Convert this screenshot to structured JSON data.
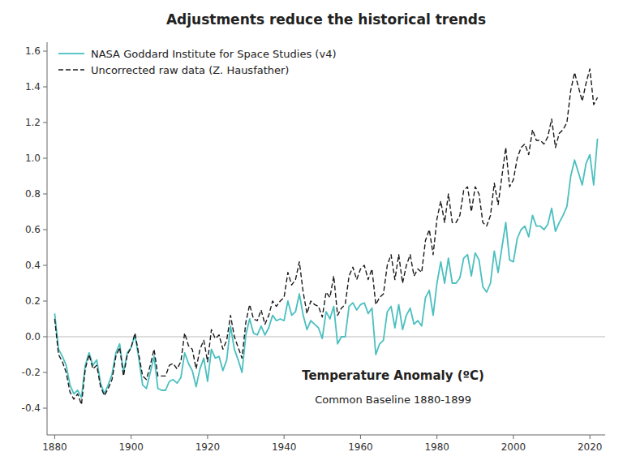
{
  "chart_data": {
    "type": "line",
    "title": "Adjustments reduce the historical trends",
    "x": [
      1880,
      1881,
      1882,
      1883,
      1884,
      1885,
      1886,
      1887,
      1888,
      1889,
      1890,
      1891,
      1892,
      1893,
      1894,
      1895,
      1896,
      1897,
      1898,
      1899,
      1900,
      1901,
      1902,
      1903,
      1904,
      1905,
      1906,
      1907,
      1908,
      1909,
      1910,
      1911,
      1912,
      1913,
      1914,
      1915,
      1916,
      1917,
      1918,
      1919,
      1920,
      1921,
      1922,
      1923,
      1924,
      1925,
      1926,
      1927,
      1928,
      1929,
      1930,
      1931,
      1932,
      1933,
      1934,
      1935,
      1936,
      1937,
      1938,
      1939,
      1940,
      1941,
      1942,
      1943,
      1944,
      1945,
      1946,
      1947,
      1948,
      1949,
      1950,
      1951,
      1952,
      1953,
      1954,
      1955,
      1956,
      1957,
      1958,
      1959,
      1960,
      1961,
      1962,
      1963,
      1964,
      1965,
      1966,
      1967,
      1968,
      1969,
      1970,
      1971,
      1972,
      1973,
      1974,
      1975,
      1976,
      1977,
      1978,
      1979,
      1980,
      1981,
      1982,
      1983,
      1984,
      1985,
      1986,
      1987,
      1988,
      1989,
      1990,
      1991,
      1992,
      1993,
      1994,
      1995,
      1996,
      1997,
      1998,
      1999,
      2000,
      2001,
      2002,
      2003,
      2004,
      2005,
      2006,
      2007,
      2008,
      2009,
      2010,
      2011,
      2012,
      2013,
      2014,
      2015,
      2016,
      2017,
      2018,
      2019,
      2020,
      2021,
      2022
    ],
    "series": [
      {
        "name": "NASA Goddard Institute for Space Studies (v4)",
        "color": "#4bbfbf",
        "line_style": "solid",
        "values": [
          0.13,
          -0.07,
          -0.11,
          -0.16,
          -0.27,
          -0.32,
          -0.3,
          -0.34,
          -0.16,
          -0.09,
          -0.16,
          -0.13,
          -0.26,
          -0.32,
          -0.27,
          -0.21,
          -0.09,
          -0.04,
          -0.2,
          -0.09,
          -0.06,
          0.01,
          -0.12,
          -0.27,
          -0.29,
          -0.2,
          -0.11,
          -0.29,
          -0.3,
          -0.3,
          -0.25,
          -0.24,
          -0.26,
          -0.23,
          -0.09,
          -0.15,
          -0.19,
          -0.28,
          -0.18,
          -0.12,
          -0.25,
          -0.07,
          -0.12,
          -0.11,
          -0.19,
          -0.13,
          0.06,
          -0.07,
          -0.13,
          -0.2,
          0.01,
          0.1,
          0.02,
          0.01,
          0.06,
          0.01,
          0.05,
          0.12,
          0.09,
          0.1,
          0.09,
          0.2,
          0.12,
          0.14,
          0.24,
          0.12,
          0.04,
          0.09,
          0.07,
          0.05,
          -0.01,
          0.14,
          0.1,
          0.17,
          -0.04,
          0.0,
          0.0,
          0.17,
          0.19,
          0.15,
          0.18,
          0.19,
          0.13,
          0.16,
          -0.1,
          -0.04,
          -0.02,
          0.14,
          0.17,
          0.05,
          0.18,
          0.04,
          0.12,
          0.16,
          0.07,
          0.09,
          0.06,
          0.22,
          0.26,
          0.12,
          0.3,
          0.42,
          0.3,
          0.44,
          0.3,
          0.3,
          0.33,
          0.44,
          0.46,
          0.34,
          0.47,
          0.43,
          0.28,
          0.25,
          0.3,
          0.48,
          0.36,
          0.5,
          0.64,
          0.43,
          0.42,
          0.55,
          0.6,
          0.62,
          0.56,
          0.68,
          0.62,
          0.62,
          0.6,
          0.63,
          0.72,
          0.59,
          0.64,
          0.68,
          0.73,
          0.9,
          0.99,
          0.92,
          0.85,
          0.97,
          1.02,
          0.85,
          1.11
        ]
      },
      {
        "name": "Uncorrected raw data (Z. Hausfather)",
        "color": "#1a1a1a",
        "line_style": "dashed",
        "values": [
          0.1,
          -0.1,
          -0.14,
          -0.2,
          -0.31,
          -0.35,
          -0.32,
          -0.38,
          -0.18,
          -0.1,
          -0.18,
          -0.16,
          -0.28,
          -0.33,
          -0.29,
          -0.24,
          -0.11,
          -0.06,
          -0.22,
          -0.1,
          -0.06,
          0.02,
          -0.1,
          -0.22,
          -0.24,
          -0.16,
          -0.07,
          -0.22,
          -0.22,
          -0.22,
          -0.16,
          -0.15,
          -0.18,
          -0.14,
          0.02,
          -0.05,
          -0.07,
          -0.18,
          -0.07,
          -0.02,
          -0.14,
          0.04,
          -0.01,
          0.01,
          -0.07,
          -0.02,
          0.12,
          0.0,
          -0.06,
          -0.12,
          0.08,
          0.18,
          0.1,
          0.09,
          0.15,
          0.07,
          0.12,
          0.2,
          0.17,
          0.2,
          0.22,
          0.36,
          0.29,
          0.32,
          0.42,
          0.25,
          0.13,
          0.2,
          0.18,
          0.17,
          0.11,
          0.25,
          0.22,
          0.34,
          0.12,
          0.16,
          0.18,
          0.34,
          0.39,
          0.32,
          0.38,
          0.4,
          0.32,
          0.38,
          0.18,
          0.22,
          0.24,
          0.4,
          0.46,
          0.32,
          0.46,
          0.3,
          0.4,
          0.46,
          0.34,
          0.38,
          0.36,
          0.54,
          0.6,
          0.46,
          0.66,
          0.76,
          0.64,
          0.8,
          0.64,
          0.64,
          0.68,
          0.82,
          0.84,
          0.7,
          0.84,
          0.8,
          0.64,
          0.62,
          0.68,
          0.86,
          0.74,
          0.9,
          1.06,
          0.84,
          0.88,
          1.0,
          1.06,
          1.08,
          1.02,
          1.16,
          1.1,
          1.1,
          1.08,
          1.12,
          1.22,
          1.06,
          1.14,
          1.16,
          1.2,
          1.38,
          1.48,
          1.4,
          1.32,
          1.42,
          1.5,
          1.3,
          1.34
        ]
      }
    ],
    "xlim": [
      1878,
      2024
    ],
    "ylim": [
      -0.55,
      1.65
    ],
    "xticks": [
      1880,
      1900,
      1920,
      1940,
      1960,
      1980,
      2000,
      2020
    ],
    "yticks": [
      -0.4,
      -0.2,
      {
        "value": 0,
        "label": "0.0"
      },
      0.2,
      0.4,
      0.6,
      0.8,
      {
        "value": 1,
        "label": "1.0"
      },
      1.2,
      1.4,
      1.6
    ],
    "annotations": [
      "Temperature Anomaly (ºC)",
      "Common Baseline 1880-1899"
    ],
    "legend": "upper left",
    "grid": false
  }
}
